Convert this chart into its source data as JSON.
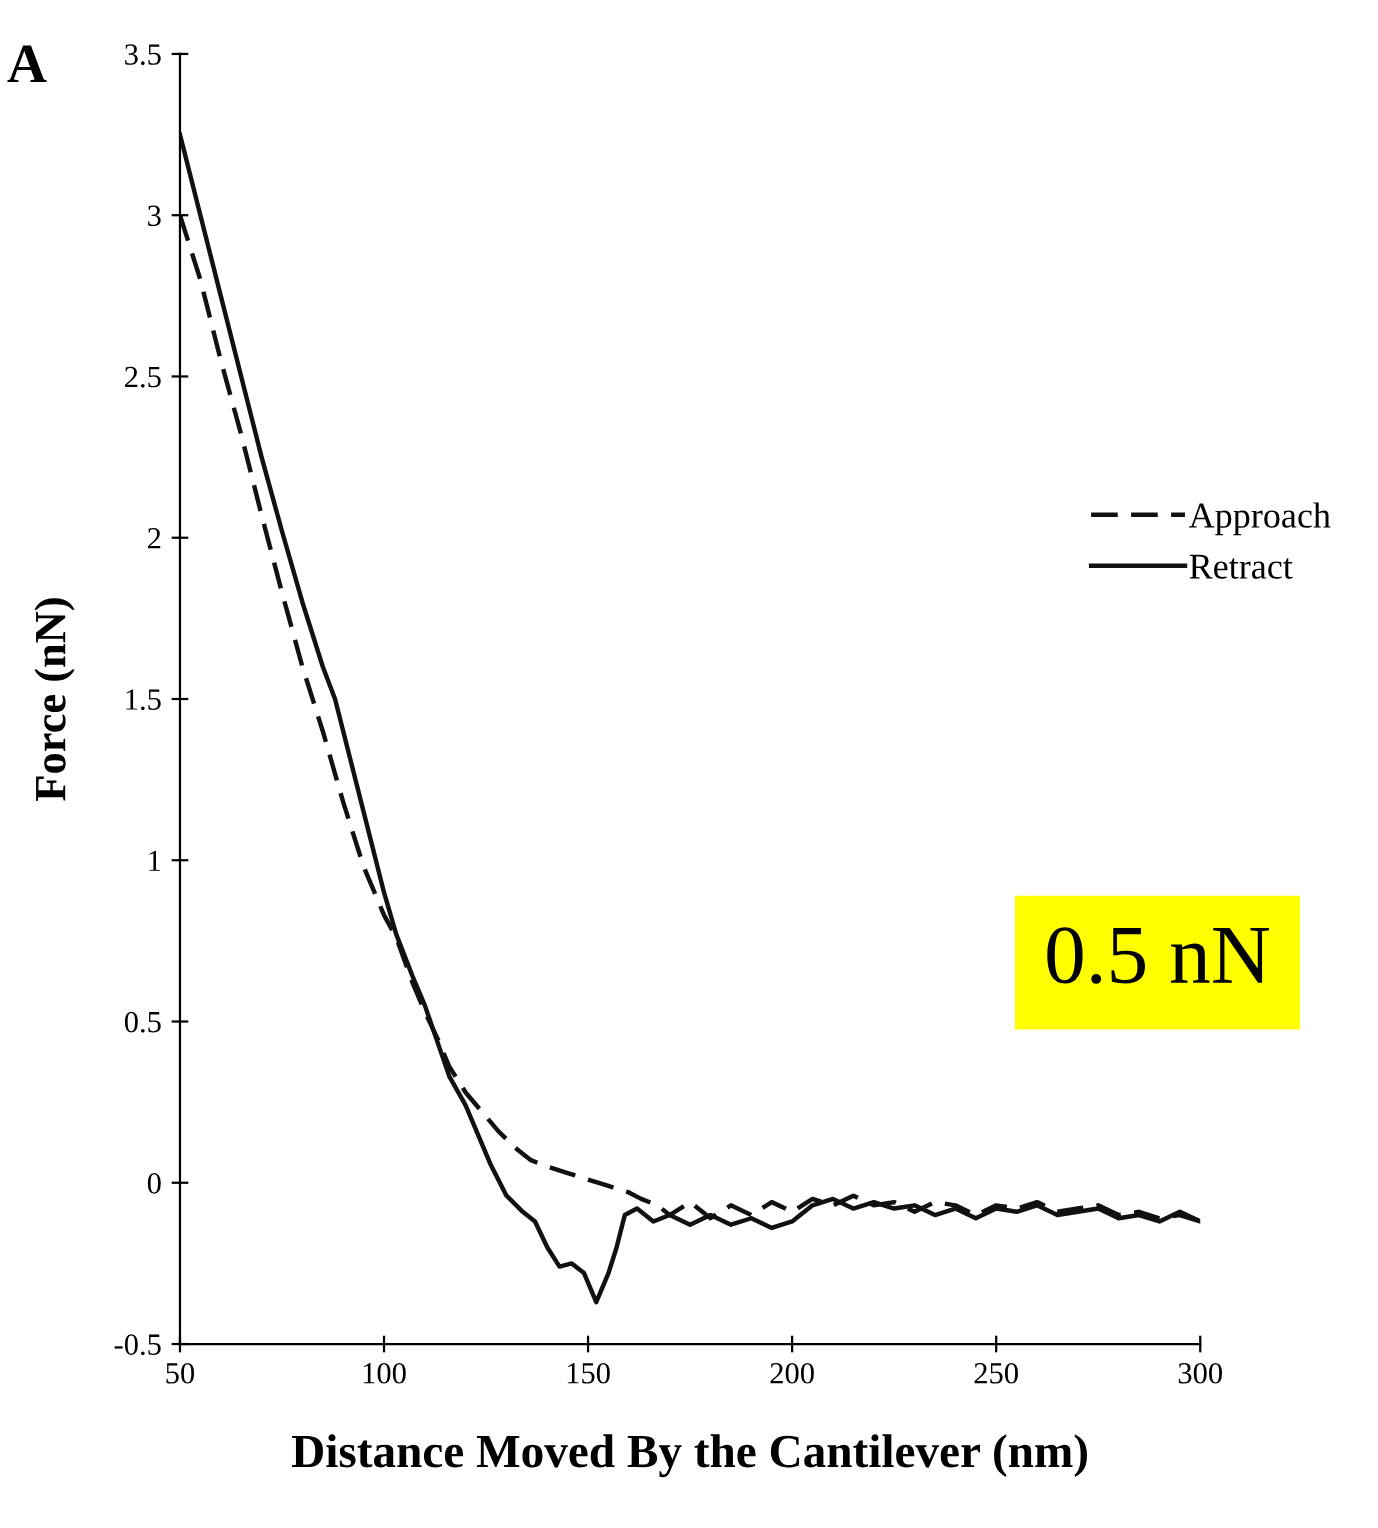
{
  "chart_data": {
    "type": "line",
    "xlabel": "Distance Moved By the Cantilever (nm)",
    "ylabel": "Force (nN)",
    "annotations": [
      "A",
      "0.5 nN"
    ],
    "xlim": [
      50,
      300
    ],
    "xticks": [
      50,
      100,
      150,
      200,
      250,
      300
    ],
    "ylim": [
      -0.5,
      3.5
    ],
    "yticks": [
      {
        "value": -0.5,
        "label": "-0.5"
      },
      0,
      0.5,
      1,
      1.5,
      2,
      2.5,
      3,
      3.5
    ],
    "grid": false,
    "legend": "right",
    "marker": "none",
    "series": [
      {
        "name": "Approach",
        "color": "#111111",
        "line_style": "dashed",
        "x": [
          50,
          55,
          60,
          65,
          70,
          75,
          80,
          85,
          90,
          95,
          100,
          103,
          107,
          110,
          113,
          116,
          120,
          124,
          128,
          132,
          136,
          140,
          145,
          150,
          155,
          160,
          163,
          167,
          170,
          175,
          180,
          185,
          190,
          195,
          200,
          205,
          210,
          215,
          220,
          225,
          230,
          235,
          240,
          245,
          250,
          255,
          260,
          265,
          270,
          275,
          280,
          285,
          290,
          295,
          300
        ],
        "values": [
          3.0,
          2.8,
          2.55,
          2.32,
          2.07,
          1.83,
          1.6,
          1.4,
          1.18,
          0.98,
          0.83,
          0.76,
          0.62,
          0.53,
          0.45,
          0.36,
          0.28,
          0.22,
          0.16,
          0.11,
          0.07,
          0.05,
          0.03,
          0.01,
          -0.01,
          -0.03,
          -0.05,
          -0.07,
          -0.1,
          -0.06,
          -0.11,
          -0.07,
          -0.1,
          -0.06,
          -0.09,
          -0.05,
          -0.07,
          -0.04,
          -0.07,
          -0.06,
          -0.09,
          -0.06,
          -0.07,
          -0.1,
          -0.07,
          -0.08,
          -0.06,
          -0.09,
          -0.08,
          -0.07,
          -0.1,
          -0.09,
          -0.11,
          -0.1,
          -0.12
        ]
      },
      {
        "name": "Retract",
        "color": "#111111",
        "line_style": "solid",
        "x": [
          50,
          55,
          60,
          65,
          70,
          75,
          80,
          85,
          88,
          92,
          95,
          98,
          100,
          103,
          107,
          110,
          113,
          116,
          120,
          123,
          126,
          130,
          134,
          137,
          140,
          143,
          146,
          149,
          152,
          155,
          157,
          159,
          162,
          166,
          170,
          175,
          180,
          185,
          190,
          195,
          200,
          205,
          210,
          215,
          220,
          225,
          230,
          235,
          240,
          245,
          250,
          255,
          260,
          265,
          270,
          275,
          280,
          285,
          290,
          295,
          300
        ],
        "values": [
          3.25,
          3.0,
          2.75,
          2.5,
          2.25,
          2.02,
          1.8,
          1.6,
          1.5,
          1.3,
          1.15,
          1.0,
          0.9,
          0.77,
          0.64,
          0.55,
          0.44,
          0.33,
          0.24,
          0.15,
          0.06,
          -0.04,
          -0.09,
          -0.12,
          -0.2,
          -0.26,
          -0.25,
          -0.28,
          -0.37,
          -0.28,
          -0.2,
          -0.1,
          -0.08,
          -0.12,
          -0.1,
          -0.13,
          -0.1,
          -0.13,
          -0.11,
          -0.14,
          -0.12,
          -0.07,
          -0.05,
          -0.08,
          -0.06,
          -0.08,
          -0.07,
          -0.1,
          -0.08,
          -0.11,
          -0.08,
          -0.09,
          -0.07,
          -0.1,
          -0.09,
          -0.08,
          -0.11,
          -0.1,
          -0.12,
          -0.09,
          -0.12
        ]
      }
    ]
  }
}
